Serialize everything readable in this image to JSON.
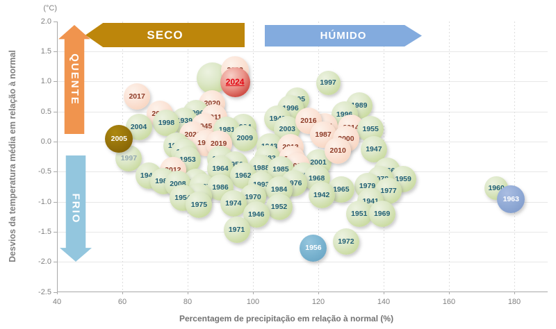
{
  "axes": {
    "unit_label": "(°C)",
    "y_title": "Desvios da temperatura média em relação à normal",
    "x_title": "Percentagem de precipitação em relação à normal (%)",
    "y_tick_labels": [
      "2.0",
      "1.5",
      "1.0",
      "0.5",
      "0.0",
      "-0.5",
      "-1.0",
      "-1.5",
      "-2.0",
      "-2.5"
    ],
    "y_tick_values": [
      2,
      1.5,
      1,
      0.5,
      0,
      -0.5,
      -1,
      -1.5,
      -2,
      -2.5
    ],
    "x_tick_values": [
      40,
      60,
      80,
      100,
      120,
      140,
      160,
      180
    ]
  },
  "annotations": {
    "seco": "SECO",
    "humido": "HÚMIDO",
    "quente": "QUENTE",
    "frio": "FRIO"
  },
  "colors": {
    "seco_arrow": "#bd860b",
    "humido_arrow": "#83abde",
    "quente_arrow": "#f0944e",
    "frio_arrow": "#93c6de",
    "bubble_green": "#d5e3b8",
    "bubble_peach": "#fbe3d6",
    "bubble_red_2024": "#d05048",
    "bubble_brown_2005": "#93700a",
    "bubble_blue_1956": "#77b1ce",
    "bubble_blue_1963": "#8ea8d4",
    "label_teal": "#1f5e74",
    "label_maroon": "#8d3a26",
    "label_red_2024": "#e30613"
  },
  "chart_data": {
    "type": "scatter",
    "title": "",
    "xlabel": "Percentagem de precipitação em relação à normal (%)",
    "ylabel": "Desvios da temperatura média em relação à normal (°C)",
    "xlim": [
      40,
      190
    ],
    "ylim": [
      -2.5,
      2.0
    ],
    "grid": true,
    "points": [
      {
        "year": "1939",
        "precip_pct": 79,
        "temp_dev_c": 0.35,
        "color": "green"
      },
      {
        "year": "1941",
        "precip_pct": 136,
        "temp_dev_c": -0.99,
        "color": "green"
      },
      {
        "year": "1942",
        "precip_pct": 121,
        "temp_dev_c": -0.89,
        "color": "green"
      },
      {
        "year": "1943",
        "precip_pct": 105,
        "temp_dev_c": -0.08,
        "color": "green"
      },
      {
        "year": "1944",
        "precip_pct": 68,
        "temp_dev_c": -0.56,
        "color": "green"
      },
      {
        "year": "1945",
        "precip_pct": 85,
        "temp_dev_c": 0.25,
        "color": "peach"
      },
      {
        "year": "1946",
        "precip_pct": 101,
        "temp_dev_c": -1.21,
        "color": "green"
      },
      {
        "year": "1947",
        "precip_pct": 137,
        "temp_dev_c": -0.13,
        "color": "green"
      },
      {
        "year": "1948",
        "precip_pct": 107.5,
        "temp_dev_c": 0.38,
        "color": "green"
      },
      {
        "year": "1950",
        "precip_pct": 94.5,
        "temp_dev_c": -0.38,
        "color": "green"
      },
      {
        "year": "1951",
        "precip_pct": 132.5,
        "temp_dev_c": -1.2,
        "color": "green"
      },
      {
        "year": "1952",
        "precip_pct": 108,
        "temp_dev_c": -1.08,
        "color": "green"
      },
      {
        "year": "1953",
        "precip_pct": 80,
        "temp_dev_c": -0.3,
        "color": "green"
      },
      {
        "year": "1954",
        "precip_pct": 78.5,
        "temp_dev_c": -0.93,
        "color": "green"
      },
      {
        "year": "1955",
        "precip_pct": 136,
        "temp_dev_c": 0.21,
        "color": "green"
      },
      {
        "year": "1956",
        "precip_pct": 118.5,
        "temp_dev_c": -1.77,
        "color": "blue_cyan",
        "d": 39,
        "z": 915
      },
      {
        "year": "1957",
        "precip_pct": 82.5,
        "temp_dev_c": -0.67,
        "color": "green"
      },
      {
        "year": "1958",
        "precip_pct": 115.5,
        "temp_dev_c": -0.56,
        "color": "green"
      },
      {
        "year": "1959",
        "precip_pct": 146,
        "temp_dev_c": -0.62,
        "color": "green"
      },
      {
        "year": "1960",
        "precip_pct": 174.5,
        "temp_dev_c": -0.77,
        "color": "green",
        "d": 34
      },
      {
        "year": "1961",
        "precip_pct": 122,
        "temp_dev_c": 0.25,
        "color": "peach"
      },
      {
        "year": "1962",
        "precip_pct": 97,
        "temp_dev_c": -0.56,
        "color": "green"
      },
      {
        "year": "1963",
        "precip_pct": 179,
        "temp_dev_c": -0.96,
        "color": "blue_violet",
        "d": 40,
        "z": 920
      },
      {
        "year": "1964",
        "precip_pct": 90,
        "temp_dev_c": -0.45,
        "color": "green"
      },
      {
        "year": "1965",
        "precip_pct": 127,
        "temp_dev_c": -0.8,
        "color": "green"
      },
      {
        "year": "1966",
        "precip_pct": 141,
        "temp_dev_c": -0.48,
        "color": "green"
      },
      {
        "year": "1967",
        "precip_pct": 84.5,
        "temp_dev_c": -0.75,
        "color": "green"
      },
      {
        "year": "1968",
        "precip_pct": 119.5,
        "temp_dev_c": -0.61,
        "color": "green"
      },
      {
        "year": "1969",
        "precip_pct": 139.5,
        "temp_dev_c": -1.2,
        "color": "green"
      },
      {
        "year": "1970",
        "precip_pct": 100,
        "temp_dev_c": -0.92,
        "color": "green"
      },
      {
        "year": "1971",
        "precip_pct": 95,
        "temp_dev_c": -1.46,
        "color": "green"
      },
      {
        "year": "1972",
        "precip_pct": 128.5,
        "temp_dev_c": -1.66,
        "color": "green"
      },
      {
        "year": "1973",
        "precip_pct": 83.5,
        "temp_dev_c": -0.91,
        "color": "green"
      },
      {
        "year": "1974",
        "precip_pct": 94,
        "temp_dev_c": -1.03,
        "color": "green"
      },
      {
        "year": "1975",
        "precip_pct": 83.5,
        "temp_dev_c": -1.05,
        "color": "green"
      },
      {
        "year": "1976",
        "precip_pct": 112.5,
        "temp_dev_c": -0.69,
        "color": "green"
      },
      {
        "year": "1977",
        "precip_pct": 141.5,
        "temp_dev_c": -0.82,
        "color": "green"
      },
      {
        "year": "1978",
        "precip_pct": 139,
        "temp_dev_c": -0.62,
        "color": "green"
      },
      {
        "year": "1979",
        "precip_pct": 135,
        "temp_dev_c": -0.74,
        "color": "green"
      },
      {
        "year": "1980",
        "precip_pct": 72.5,
        "temp_dev_c": -0.66,
        "color": "green"
      },
      {
        "year": "1981",
        "precip_pct": 92,
        "temp_dev_c": 0.2,
        "color": "green"
      },
      {
        "year": "1982",
        "precip_pct": 79,
        "temp_dev_c": -0.17,
        "color": "green"
      },
      {
        "year": "1983",
        "precip_pct": 104.5,
        "temp_dev_c": -0.28,
        "color": "green"
      },
      {
        "year": "1984",
        "precip_pct": 108,
        "temp_dev_c": -0.8,
        "color": "green"
      },
      {
        "year": "1985",
        "precip_pct": 108.5,
        "temp_dev_c": -0.46,
        "color": "green"
      },
      {
        "year": "1986",
        "precip_pct": 90,
        "temp_dev_c": -0.76,
        "color": "green"
      },
      {
        "year": "1987",
        "precip_pct": 121.5,
        "temp_dev_c": 0.12,
        "color": "peach"
      },
      {
        "year": "1988",
        "precip_pct": 102.5,
        "temp_dev_c": -0.44,
        "color": "green"
      },
      {
        "year": "1989",
        "precip_pct": 132.5,
        "temp_dev_c": 0.6,
        "color": "green"
      },
      {
        "year": "1990",
        "precip_pct": 82.5,
        "temp_dev_c": 0.47,
        "color": "green"
      },
      {
        "year": "1991",
        "precip_pct": 85.5,
        "temp_dev_c": -0.02,
        "color": "peach"
      },
      {
        "year": "1992",
        "precip_pct": 76.5,
        "temp_dev_c": -0.07,
        "color": "green"
      },
      {
        "year": "1993",
        "precip_pct": 102.5,
        "temp_dev_c": -0.72,
        "color": "green"
      },
      {
        "year": "1994",
        "precip_pct": 97,
        "temp_dev_c": 0.24,
        "color": "green"
      },
      {
        "year": "1995",
        "precip_pct": 113.5,
        "temp_dev_c": 0.7,
        "color": "green",
        "d": 35
      },
      {
        "year": "1996",
        "precip_pct": 111.5,
        "temp_dev_c": 0.55,
        "color": "green"
      },
      {
        "year": "1996",
        "precip_pct": 128,
        "temp_dev_c": 0.45,
        "color": "green"
      },
      {
        "year": "1997",
        "precip_pct": 123,
        "temp_dev_c": 0.98,
        "color": "green",
        "d": 35
      },
      {
        "year": "1997",
        "precip_pct": 62,
        "temp_dev_c": -0.28,
        "color": "green",
        "muted": true
      },
      {
        "year": "1998",
        "precip_pct": 73.5,
        "temp_dev_c": 0.31,
        "color": "green"
      },
      {
        "year": "1999",
        "precip_pct": 90,
        "temp_dev_c": -0.29,
        "color": "green"
      },
      {
        "year": "2000",
        "precip_pct": 128.5,
        "temp_dev_c": 0.05,
        "color": "peach"
      },
      {
        "year": "2001",
        "precip_pct": 120,
        "temp_dev_c": -0.35,
        "color": "green"
      },
      {
        "year": "2002",
        "precip_pct": 113.5,
        "temp_dev_c": -0.4,
        "color": "peach"
      },
      {
        "year": "2003",
        "precip_pct": 110.5,
        "temp_dev_c": 0.21,
        "color": "green"
      },
      {
        "year": "2004",
        "precip_pct": 65,
        "temp_dev_c": 0.24,
        "color": "green"
      },
      {
        "year": "2005",
        "precip_pct": 59,
        "temp_dev_c": 0.05,
        "color": "brown",
        "d": 40,
        "z": 900
      },
      {
        "year": "2008",
        "precip_pct": 77,
        "temp_dev_c": -0.7,
        "color": "green"
      },
      {
        "year": "2009",
        "precip_pct": 97.5,
        "temp_dev_c": 0.06,
        "color": "green"
      },
      {
        "year": "2010",
        "precip_pct": 126,
        "temp_dev_c": -0.15,
        "color": "peach",
        "z": 905
      },
      {
        "year": "2011",
        "precip_pct": 88,
        "temp_dev_c": 0.4,
        "color": "peach"
      },
      {
        "year": "2012",
        "precip_pct": 75.5,
        "temp_dev_c": -0.47,
        "color": "peach"
      },
      {
        "year": "2013",
        "precip_pct": 111.5,
        "temp_dev_c": -0.09,
        "color": "peach"
      },
      {
        "year": "2014",
        "precip_pct": 130,
        "temp_dev_c": 0.23,
        "color": "peach"
      },
      {
        "year": "2015",
        "precip_pct": 71.5,
        "temp_dev_c": 0.46,
        "color": "peach"
      },
      {
        "year": "2016",
        "precip_pct": 117,
        "temp_dev_c": 0.35,
        "color": "peach",
        "z": 190
      },
      {
        "year": "2017",
        "precip_pct": 64.5,
        "temp_dev_c": 0.75,
        "color": "peach"
      },
      {
        "year": "2018",
        "precip_pct": 112,
        "temp_dev_c": -0.29,
        "color": "peach"
      },
      {
        "year": "2019",
        "precip_pct": 89.5,
        "temp_dev_c": -0.03,
        "color": "peach"
      },
      {
        "year": "2020",
        "precip_pct": 87.5,
        "temp_dev_c": 0.63,
        "color": "peach"
      },
      {
        "year": "2021",
        "precip_pct": 81.5,
        "temp_dev_c": 0.12,
        "color": "peach"
      },
      {
        "year": "2022",
        "precip_pct": 94.5,
        "temp_dev_c": 1.19,
        "color": "peach",
        "d": 40
      },
      {
        "year": "",
        "precip_pct": 87.5,
        "temp_dev_c": 1.05,
        "color": "green",
        "d": 45,
        "z": 95
      },
      {
        "year": "2024",
        "precip_pct": 94.5,
        "temp_dev_c": 0.99,
        "color": "red",
        "d": 43,
        "z": 910
      }
    ]
  }
}
